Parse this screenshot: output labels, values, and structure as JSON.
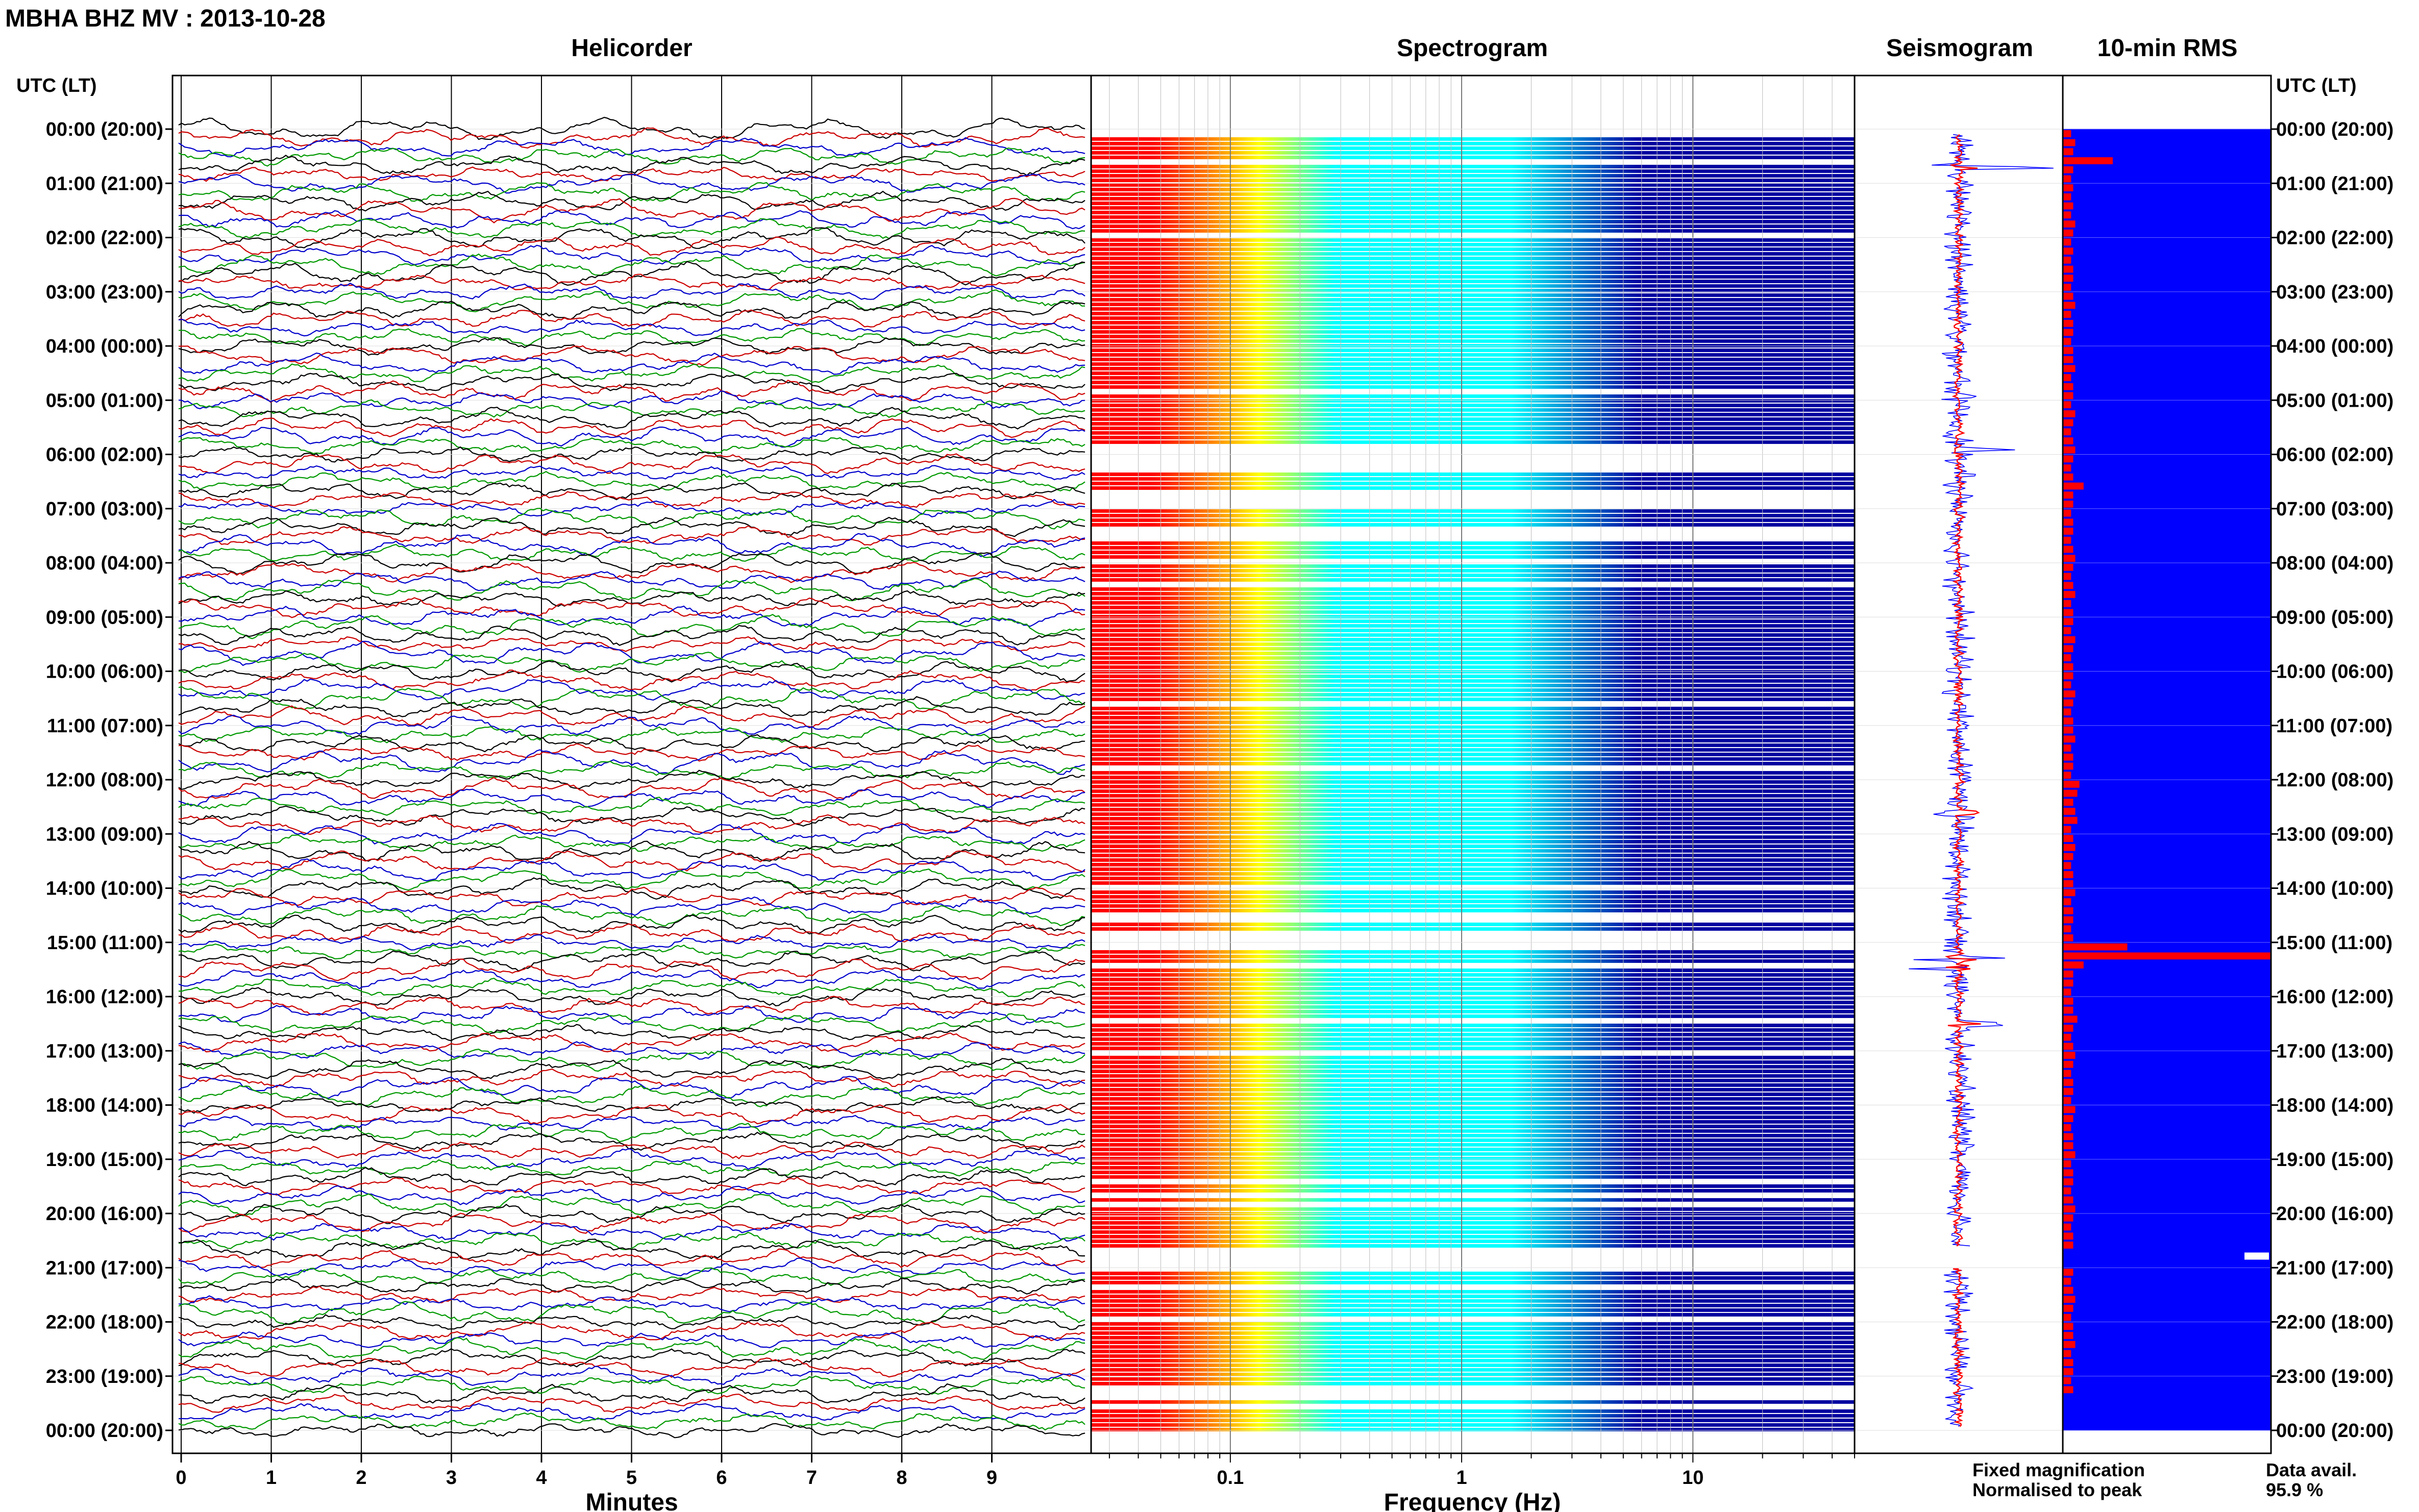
{
  "page_title": "MBHA BHZ MV : 2013-10-28",
  "panels": {
    "helicorder": "Helicorder",
    "spectrogram": "Spectrogram",
    "seismogram": "Seismogram",
    "rms": "10-min RMS"
  },
  "time_axis_label": "UTC (LT)",
  "legend": {
    "fixed": "Fixed magnification",
    "normalised": "Normalised to peak",
    "fixed_color": "#0000ff",
    "normalised_color": "#ff0000"
  },
  "availability": {
    "label": "Data avail.",
    "value": "95.9 %"
  },
  "chart_data": [
    {
      "type": "line",
      "name": "helicorder",
      "title": "Helicorder",
      "xlabel": "Minutes",
      "xlim": [
        0,
        10
      ],
      "x_ticks": [
        "0",
        "1",
        "2",
        "3",
        "4",
        "5",
        "6",
        "7",
        "8",
        "9"
      ],
      "y_ticks": [
        "00:00 (20:00)",
        "01:00 (21:00)",
        "02:00 (22:00)",
        "03:00 (23:00)",
        "04:00 (00:00)",
        "05:00 (01:00)",
        "06:00 (02:00)",
        "07:00 (03:00)",
        "08:00 (04:00)",
        "09:00 (05:00)",
        "10:00 (06:00)",
        "11:00 (07:00)",
        "12:00 (08:00)",
        "13:00 (09:00)",
        "14:00 (10:00)",
        "15:00 (11:00)",
        "16:00 (12:00)",
        "17:00 (13:00)",
        "18:00 (14:00)",
        "19:00 (15:00)",
        "20:00 (16:00)",
        "21:00 (17:00)",
        "22:00 (18:00)",
        "23:00 (19:00)",
        "00:00 (20:00)"
      ],
      "rows_per_hour": 6,
      "trace_colors": [
        "#000000",
        "#cc0000",
        "#0000cc",
        "#009900"
      ],
      "grid": true
    },
    {
      "type": "heatmap",
      "name": "spectrogram",
      "title": "Spectrogram",
      "xlabel": "Frequency (Hz)",
      "x_scale": "log",
      "xlim": [
        0.025,
        50
      ],
      "x_ticks": [
        "0.1",
        "1",
        "10"
      ],
      "colormap": [
        "#ff0000",
        "#ff8800",
        "#ffff00",
        "#00ffff",
        "#0000a0"
      ],
      "gap_hours": [
        [
          5.8,
          6.3
        ],
        [
          6.6,
          7.0
        ],
        [
          7.3,
          7.6
        ],
        [
          7.9,
          8.0
        ],
        [
          8.3,
          8.4
        ],
        [
          14.4,
          14.6
        ],
        [
          14.8,
          15.1
        ],
        [
          15.35,
          15.45
        ],
        [
          20.6,
          21.0
        ]
      ]
    },
    {
      "type": "line",
      "name": "seismogram",
      "title": "Seismogram",
      "orientation": "vertical",
      "series": [
        {
          "name": "Fixed magnification",
          "color": "#0000ff"
        },
        {
          "name": "Normalised to peak",
          "color": "#ff0000"
        }
      ],
      "events_hours": [
        0.7,
        5.9,
        12.6,
        15.3,
        15.45,
        16.5,
        21.0
      ]
    },
    {
      "type": "bar",
      "name": "rms",
      "title": "10-min RMS",
      "orientation": "horizontal",
      "xlim": [
        0,
        1
      ],
      "background": "#0000ff",
      "bar_color": "#ff0000",
      "values": [
        0.04,
        0.06,
        0.05,
        0.24,
        0.05,
        0.04,
        0.05,
        0.04,
        0.05,
        0.04,
        0.06,
        0.05,
        0.04,
        0.05,
        0.04,
        0.05,
        0.05,
        0.04,
        0.05,
        0.06,
        0.04,
        0.05,
        0.05,
        0.04,
        0.05,
        0.05,
        0.06,
        0.04,
        0.05,
        0.05,
        0.04,
        0.06,
        0.05,
        0.04,
        0.05,
        0.06,
        0.05,
        0.04,
        0.05,
        0.1,
        0.05,
        0.05,
        0.04,
        0.05,
        0.05,
        0.04,
        0.05,
        0.06,
        0.05,
        0.04,
        0.05,
        0.06,
        0.04,
        0.05,
        0.05,
        0.04,
        0.06,
        0.05,
        0.04,
        0.05,
        0.05,
        0.04,
        0.06,
        0.05,
        0.04,
        0.05,
        0.05,
        0.06,
        0.04,
        0.05,
        0.05,
        0.04,
        0.08,
        0.07,
        0.05,
        0.06,
        0.07,
        0.04,
        0.05,
        0.06,
        0.05,
        0.04,
        0.05,
        0.05,
        0.06,
        0.04,
        0.05,
        0.05,
        0.04,
        0.05,
        0.31,
        1.0,
        0.1,
        0.05,
        0.05,
        0.04,
        0.05,
        0.05,
        0.07,
        0.05,
        0.04,
        0.05,
        0.06,
        0.05,
        0.04,
        0.05,
        0.05,
        0.04,
        0.06,
        0.05,
        0.04,
        0.05,
        0.05,
        0.06,
        0.04,
        0.05,
        0.05,
        0.04,
        0.05,
        0.06,
        0.05,
        0.04,
        0.05,
        0.05,
        0.0,
        0.0,
        0.05,
        0.04,
        0.05,
        0.06,
        0.05,
        0.04,
        0.05,
        0.05,
        0.06,
        0.04,
        0.05,
        0.05,
        0.04,
        0.05
      ]
    }
  ]
}
